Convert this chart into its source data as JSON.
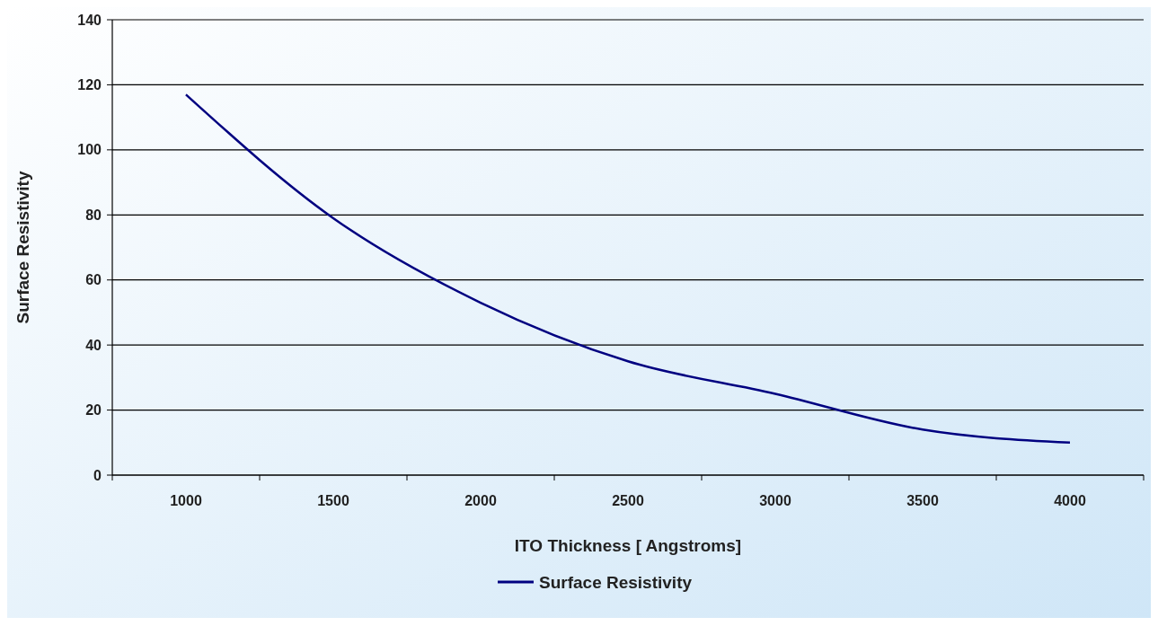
{
  "chart_data": {
    "type": "line",
    "xlabel": "ITO Thickness [ Angstroms]",
    "ylabel": "Surface Resistivity",
    "categories": [
      "1000",
      "1500",
      "2000",
      "2500",
      "3000",
      "3500",
      "4000"
    ],
    "series": [
      {
        "name": "Surface Resistivity",
        "color": "#000080",
        "values": [
          117,
          79,
          53,
          35,
          25,
          14,
          10
        ]
      }
    ],
    "ylim": [
      0,
      140
    ],
    "yticks": [
      0,
      20,
      40,
      60,
      80,
      100,
      120,
      140
    ],
    "grid": "y",
    "legend": "bottom",
    "marker": "none",
    "line_style": "solid"
  }
}
